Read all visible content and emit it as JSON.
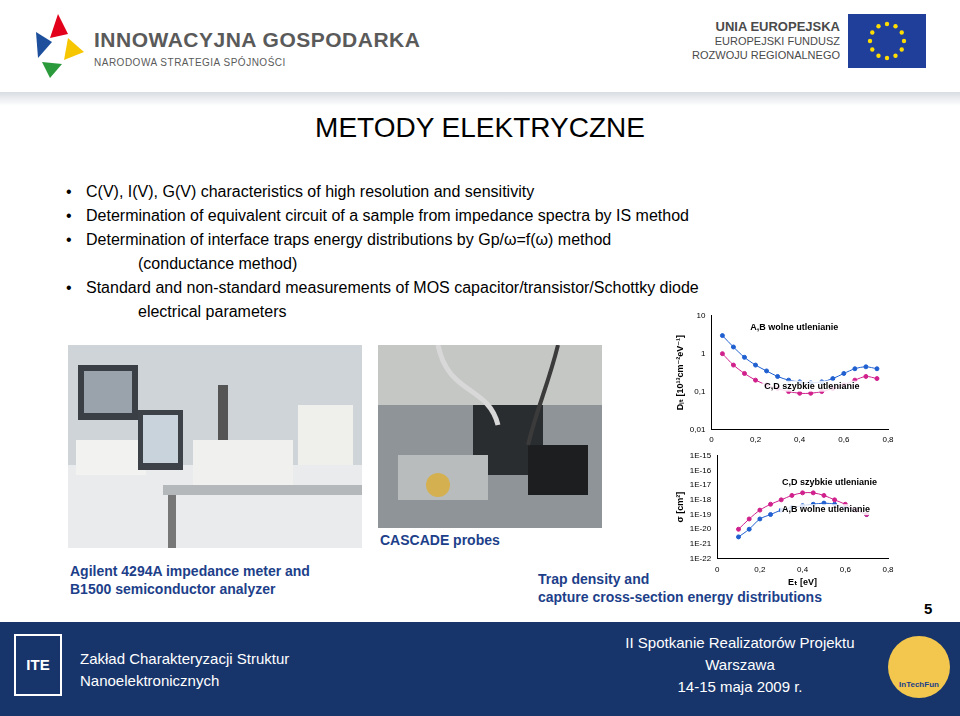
{
  "header": {
    "left_title": "INNOWACYJNA GOSPODARKA",
    "left_subtitle": "NARODOWA STRATEGIA SPÓJNOŚCI",
    "right_lines": [
      "UNIA EUROPEJSKA",
      "EUROPEJSKI FUNDUSZ",
      "ROZWOJU REGIONALNEGO"
    ]
  },
  "title": "METODY ELEKTRYCZNE",
  "bullets": [
    [
      "C(V), I(V), G(V) characteristics of high resolution and sensitivity"
    ],
    [
      "Determination of equivalent circuit of a sample from impedance spectra by IS method"
    ],
    [
      "Determination of interface traps energy distributions by Gp/ω=f(ω) method",
      "(conductance method)"
    ],
    [
      "Standard and non-standard measurements of MOS capacitor/transistor/Schottky diode",
      "electrical parameters"
    ]
  ],
  "captions": {
    "equipment": [
      "Agilent 4294A impedance meter and",
      "B1500 semiconductor analyzer"
    ],
    "probes": [
      "CASCADE probes"
    ],
    "distributions": [
      "Trap density and",
      "capture cross-section energy distributions"
    ]
  },
  "page_number": 5,
  "footer": {
    "left": [
      "Zakład Charakteryzacji Struktur",
      "Nanoelektronicznych"
    ],
    "right": [
      "II Spotkanie Realizatorów Projektu",
      "Warszawa",
      "14-15 maja 2009 r."
    ],
    "left_logo": "ITE",
    "right_logo": "InTechFun"
  },
  "chart_data": [
    {
      "type": "scatter",
      "y_label": "Dᵢₜ [10¹³cm⁻²eV⁻¹]",
      "log": "y",
      "grid": false,
      "marker": "circle",
      "line_style": "solid",
      "x": [
        0.05,
        0.1,
        0.15,
        0.2,
        0.25,
        0.3,
        0.35,
        0.4,
        0.45,
        0.5,
        0.55,
        0.6,
        0.65,
        0.7,
        0.75
      ],
      "series": [
        {
          "name": "A,B wolne utlenianie",
          "color": "#1f5fd0",
          "values": [
            3,
            1.5,
            0.8,
            0.5,
            0.35,
            0.25,
            0.2,
            0.18,
            0.17,
            0.18,
            0.22,
            0.3,
            0.4,
            0.45,
            0.4
          ]
        },
        {
          "name": "C,D szybkie utlenianie",
          "color": "#d0208c",
          "values": [
            1,
            0.5,
            0.3,
            0.2,
            0.15,
            0.12,
            0.1,
            0.09,
            0.09,
            0.1,
            0.12,
            0.15,
            0.2,
            0.25,
            0.22
          ]
        }
      ],
      "xlim": [
        0,
        0.8
      ],
      "xticks": [
        0,
        {
          "value": 0.2,
          "label": "0,2"
        },
        {
          "value": 0.4,
          "label": "0,4"
        },
        {
          "value": 0.6,
          "label": "0,6"
        },
        {
          "value": 0.8,
          "label": "0,8"
        }
      ],
      "ylim": [
        0.01,
        10
      ],
      "yticks": [
        {
          "value": 0.01,
          "label": "0,01"
        },
        {
          "value": 0.1,
          "label": "0,1"
        },
        1,
        10
      ]
    },
    {
      "type": "scatter",
      "x_label": "Eₜ [eV]",
      "y_label": "σ [cm²]",
      "log": "y",
      "grid": false,
      "marker": "circle",
      "line_style": "solid",
      "x": [
        0.1,
        0.15,
        0.2,
        0.25,
        0.3,
        0.35,
        0.4,
        0.45,
        0.5,
        0.55,
        0.6,
        0.65,
        0.7
      ],
      "series": [
        {
          "name": "C,D szybkie utlenianie",
          "color": "#d0208c",
          "values": [
            1e-20,
            5e-20,
            2e-19,
            5e-19,
            1e-18,
            2e-18,
            3e-18,
            3e-18,
            2e-18,
            1e-18,
            5e-19,
            2e-19,
            1e-19
          ]
        },
        {
          "name": "A,B wolne utlenianie",
          "color": "#1f5fd0",
          "values": [
            3e-21,
            1e-20,
            5e-20,
            1e-19,
            2e-19,
            3e-19,
            4e-19,
            5e-19,
            6e-19,
            5e-19,
            3e-19,
            2e-19,
            1e-19
          ]
        }
      ],
      "xlim": [
        0,
        0.8
      ],
      "xticks": [
        0,
        {
          "value": 0.2,
          "label": "0,2"
        },
        {
          "value": 0.4,
          "label": "0,4"
        },
        {
          "value": 0.6,
          "label": "0,6"
        },
        {
          "value": 0.8,
          "label": "0,8"
        }
      ],
      "ylim": [
        1e-22,
        1e-15
      ],
      "yticks": [
        {
          "value": 1e-22,
          "label": "1E-22"
        },
        {
          "value": 1e-21,
          "label": "1E-21"
        },
        {
          "value": 1e-20,
          "label": "1E-20"
        },
        {
          "value": 1e-19,
          "label": "1E-19"
        },
        {
          "value": 1e-18,
          "label": "1E-18"
        },
        {
          "value": 1e-17,
          "label": "1E-17"
        },
        {
          "value": 1e-16,
          "label": "1E-16"
        },
        {
          "value": 1e-15,
          "label": "1E-15"
        }
      ]
    }
  ]
}
